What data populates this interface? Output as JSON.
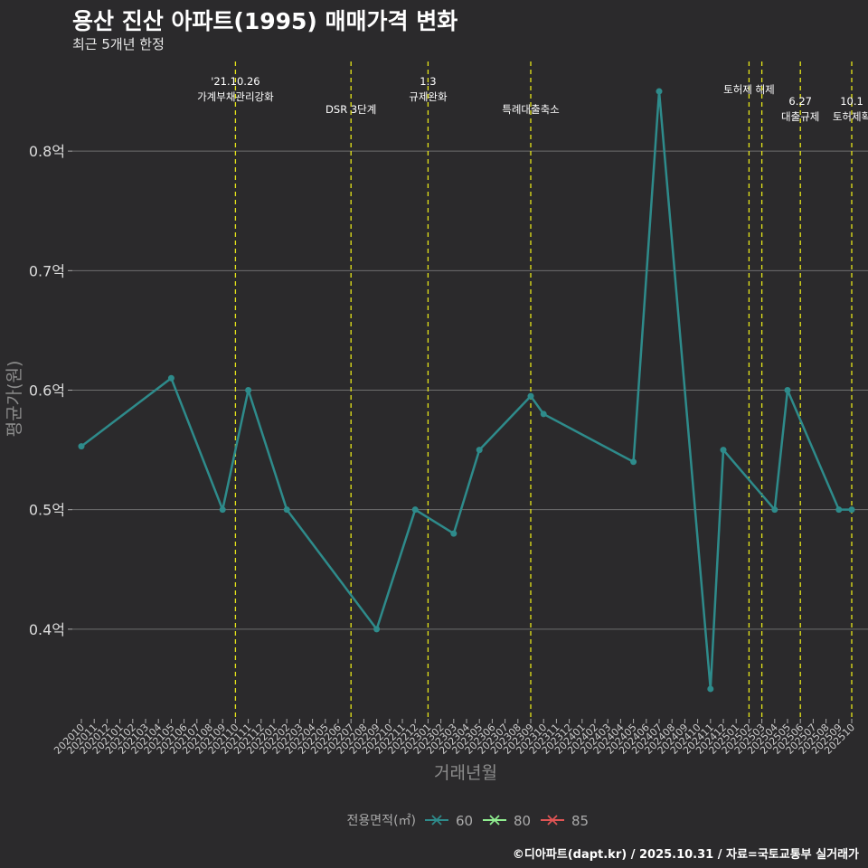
{
  "title": "용산 진산 아파트(1995) 매매가격 변화",
  "subtitle": "최근 5개년 한정",
  "caption": "©디아파트(dapt.kr) / 2025.10.31 / 자료=국토교통부 실거래가",
  "colors": {
    "background": "#2b2a2c",
    "grid": "#6e6e6e",
    "event_line": "#e6e619",
    "series_60": "#2e8b8b",
    "series_80": "#90ee90",
    "series_85": "#e05555",
    "axis_text": "#cccccc",
    "axis_title": "#8c8c8c"
  },
  "chart_data": {
    "type": "line",
    "xlabel": "거래년월",
    "ylabel": "평균가(원)",
    "categories": [
      "202010",
      "202011",
      "202012",
      "202101",
      "202102",
      "202103",
      "202104",
      "202105",
      "202106",
      "202107",
      "202108",
      "202109",
      "202110",
      "202111",
      "202112",
      "202201",
      "202202",
      "202203",
      "202204",
      "202205",
      "202206",
      "202207",
      "202208",
      "202209",
      "202210",
      "202211",
      "202212",
      "202301",
      "202302",
      "202303",
      "202304",
      "202305",
      "202306",
      "202307",
      "202308",
      "202309",
      "202310",
      "202311",
      "202312",
      "202401",
      "202402",
      "202403",
      "202404",
      "202405",
      "202406",
      "202407",
      "202408",
      "202409",
      "202410",
      "202411",
      "202412",
      "202501",
      "202502",
      "202503",
      "202504",
      "202505",
      "202506",
      "202507",
      "202508",
      "202509",
      "202510"
    ],
    "ylim": [
      0.325,
      0.875
    ],
    "yticks": [
      0.4,
      0.5,
      0.6,
      0.7,
      0.8
    ],
    "ytick_labels": [
      "0.4억",
      "0.5억",
      "0.6억",
      "0.7억",
      "0.8억"
    ],
    "grid": true,
    "legend": {
      "title": "전용면적(㎡)",
      "position": "bottom",
      "entries": [
        {
          "name": "60",
          "color": "#2e8b8b"
        },
        {
          "name": "80",
          "color": "#90ee90"
        },
        {
          "name": "85",
          "color": "#e05555"
        }
      ]
    },
    "series": [
      {
        "name": "60",
        "points": [
          {
            "x": "202010",
            "y": 0.553
          },
          {
            "x": "202105",
            "y": 0.61
          },
          {
            "x": "202109",
            "y": 0.5
          },
          {
            "x": "202111",
            "y": 0.6
          },
          {
            "x": "202202",
            "y": 0.5
          },
          {
            "x": "202209",
            "y": 0.4
          },
          {
            "x": "202212",
            "y": 0.5
          },
          {
            "x": "202303",
            "y": 0.48
          },
          {
            "x": "202305",
            "y": 0.55
          },
          {
            "x": "202309",
            "y": 0.595
          },
          {
            "x": "202310",
            "y": 0.58
          },
          {
            "x": "202405",
            "y": 0.54
          },
          {
            "x": "202407",
            "y": 0.85
          },
          {
            "x": "202411",
            "y": 0.35
          },
          {
            "x": "202412",
            "y": 0.55
          },
          {
            "x": "202504",
            "y": 0.5
          },
          {
            "x": "202505",
            "y": 0.6
          },
          {
            "x": "202509",
            "y": 0.5
          },
          {
            "x": "202510",
            "y": 0.5
          }
        ]
      }
    ],
    "events": [
      {
        "x": "202110",
        "lines": [
          "'21.10.26",
          "가계부채관리강화"
        ]
      },
      {
        "x": "202207",
        "lines": [
          "DSR 3단계"
        ]
      },
      {
        "x": "202301",
        "lines": [
          "1.3",
          "규제완화"
        ]
      },
      {
        "x": "202309",
        "lines": [
          "특례대출축소"
        ]
      },
      {
        "x": "202502",
        "lines": [
          "토허제 해제"
        ]
      },
      {
        "x": "202503",
        "lines": [
          ""
        ]
      },
      {
        "x": "202506",
        "lines": [
          "6.27",
          "대출규제"
        ]
      },
      {
        "x": "202510",
        "lines": [
          "10.1",
          "토허제확"
        ]
      }
    ]
  }
}
